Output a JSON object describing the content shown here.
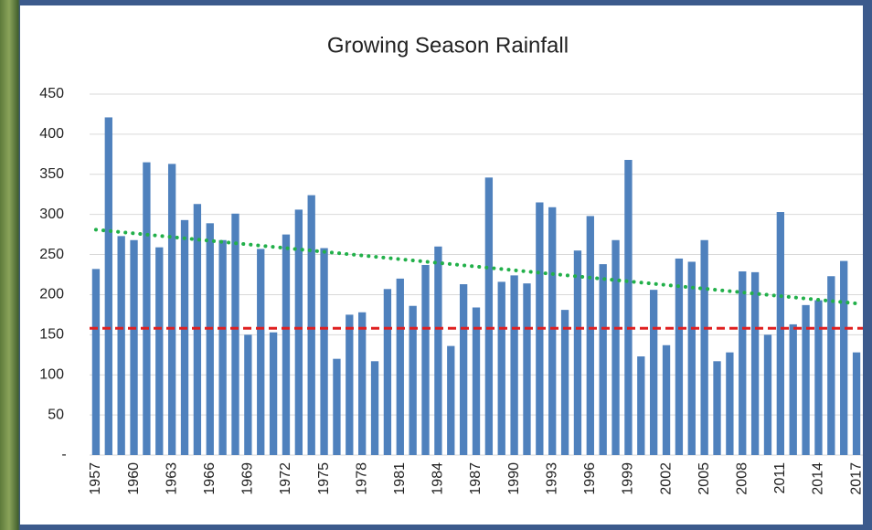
{
  "chart_data": {
    "type": "bar",
    "title": "Growing Season Rainfall",
    "categories": [
      "1957",
      null,
      null,
      "1960",
      null,
      null,
      "1963",
      null,
      null,
      "1966",
      null,
      null,
      "1969",
      null,
      null,
      "1972",
      null,
      null,
      "1975",
      null,
      null,
      "1978",
      null,
      null,
      "1981",
      null,
      null,
      "1984",
      null,
      null,
      "1987",
      null,
      null,
      "1990",
      null,
      null,
      "1993",
      null,
      null,
      "1996",
      null,
      null,
      "1999",
      null,
      null,
      "2002",
      null,
      null,
      "2005",
      null,
      null,
      "2008",
      null,
      null,
      "2011",
      null,
      null,
      "2014",
      null,
      null,
      "2017"
    ],
    "values": [
      232,
      421,
      273,
      268,
      365,
      259,
      363,
      293,
      313,
      289,
      268,
      301,
      150,
      257,
      153,
      275,
      306,
      324,
      258,
      120,
      175,
      178,
      117,
      207,
      220,
      186,
      237,
      260,
      136,
      213,
      184,
      346,
      216,
      224,
      214,
      315,
      309,
      181,
      255,
      298,
      238,
      268,
      368,
      123,
      206,
      137,
      245,
      241,
      268,
      117,
      128,
      229,
      228,
      150,
      303,
      163,
      187,
      193,
      223,
      242,
      128
    ],
    "color": "#4f81bd",
    "ylim": [
      0,
      450
    ],
    "yticks": [
      {
        "value": 0,
        "label": "-"
      },
      50,
      100,
      150,
      200,
      250,
      300,
      350,
      400,
      450
    ],
    "grid": true,
    "reference_line": {
      "value": 158,
      "color": "#e02020"
    },
    "trendline": {
      "start": 281,
      "end": 189,
      "color": "#22b04a"
    }
  }
}
